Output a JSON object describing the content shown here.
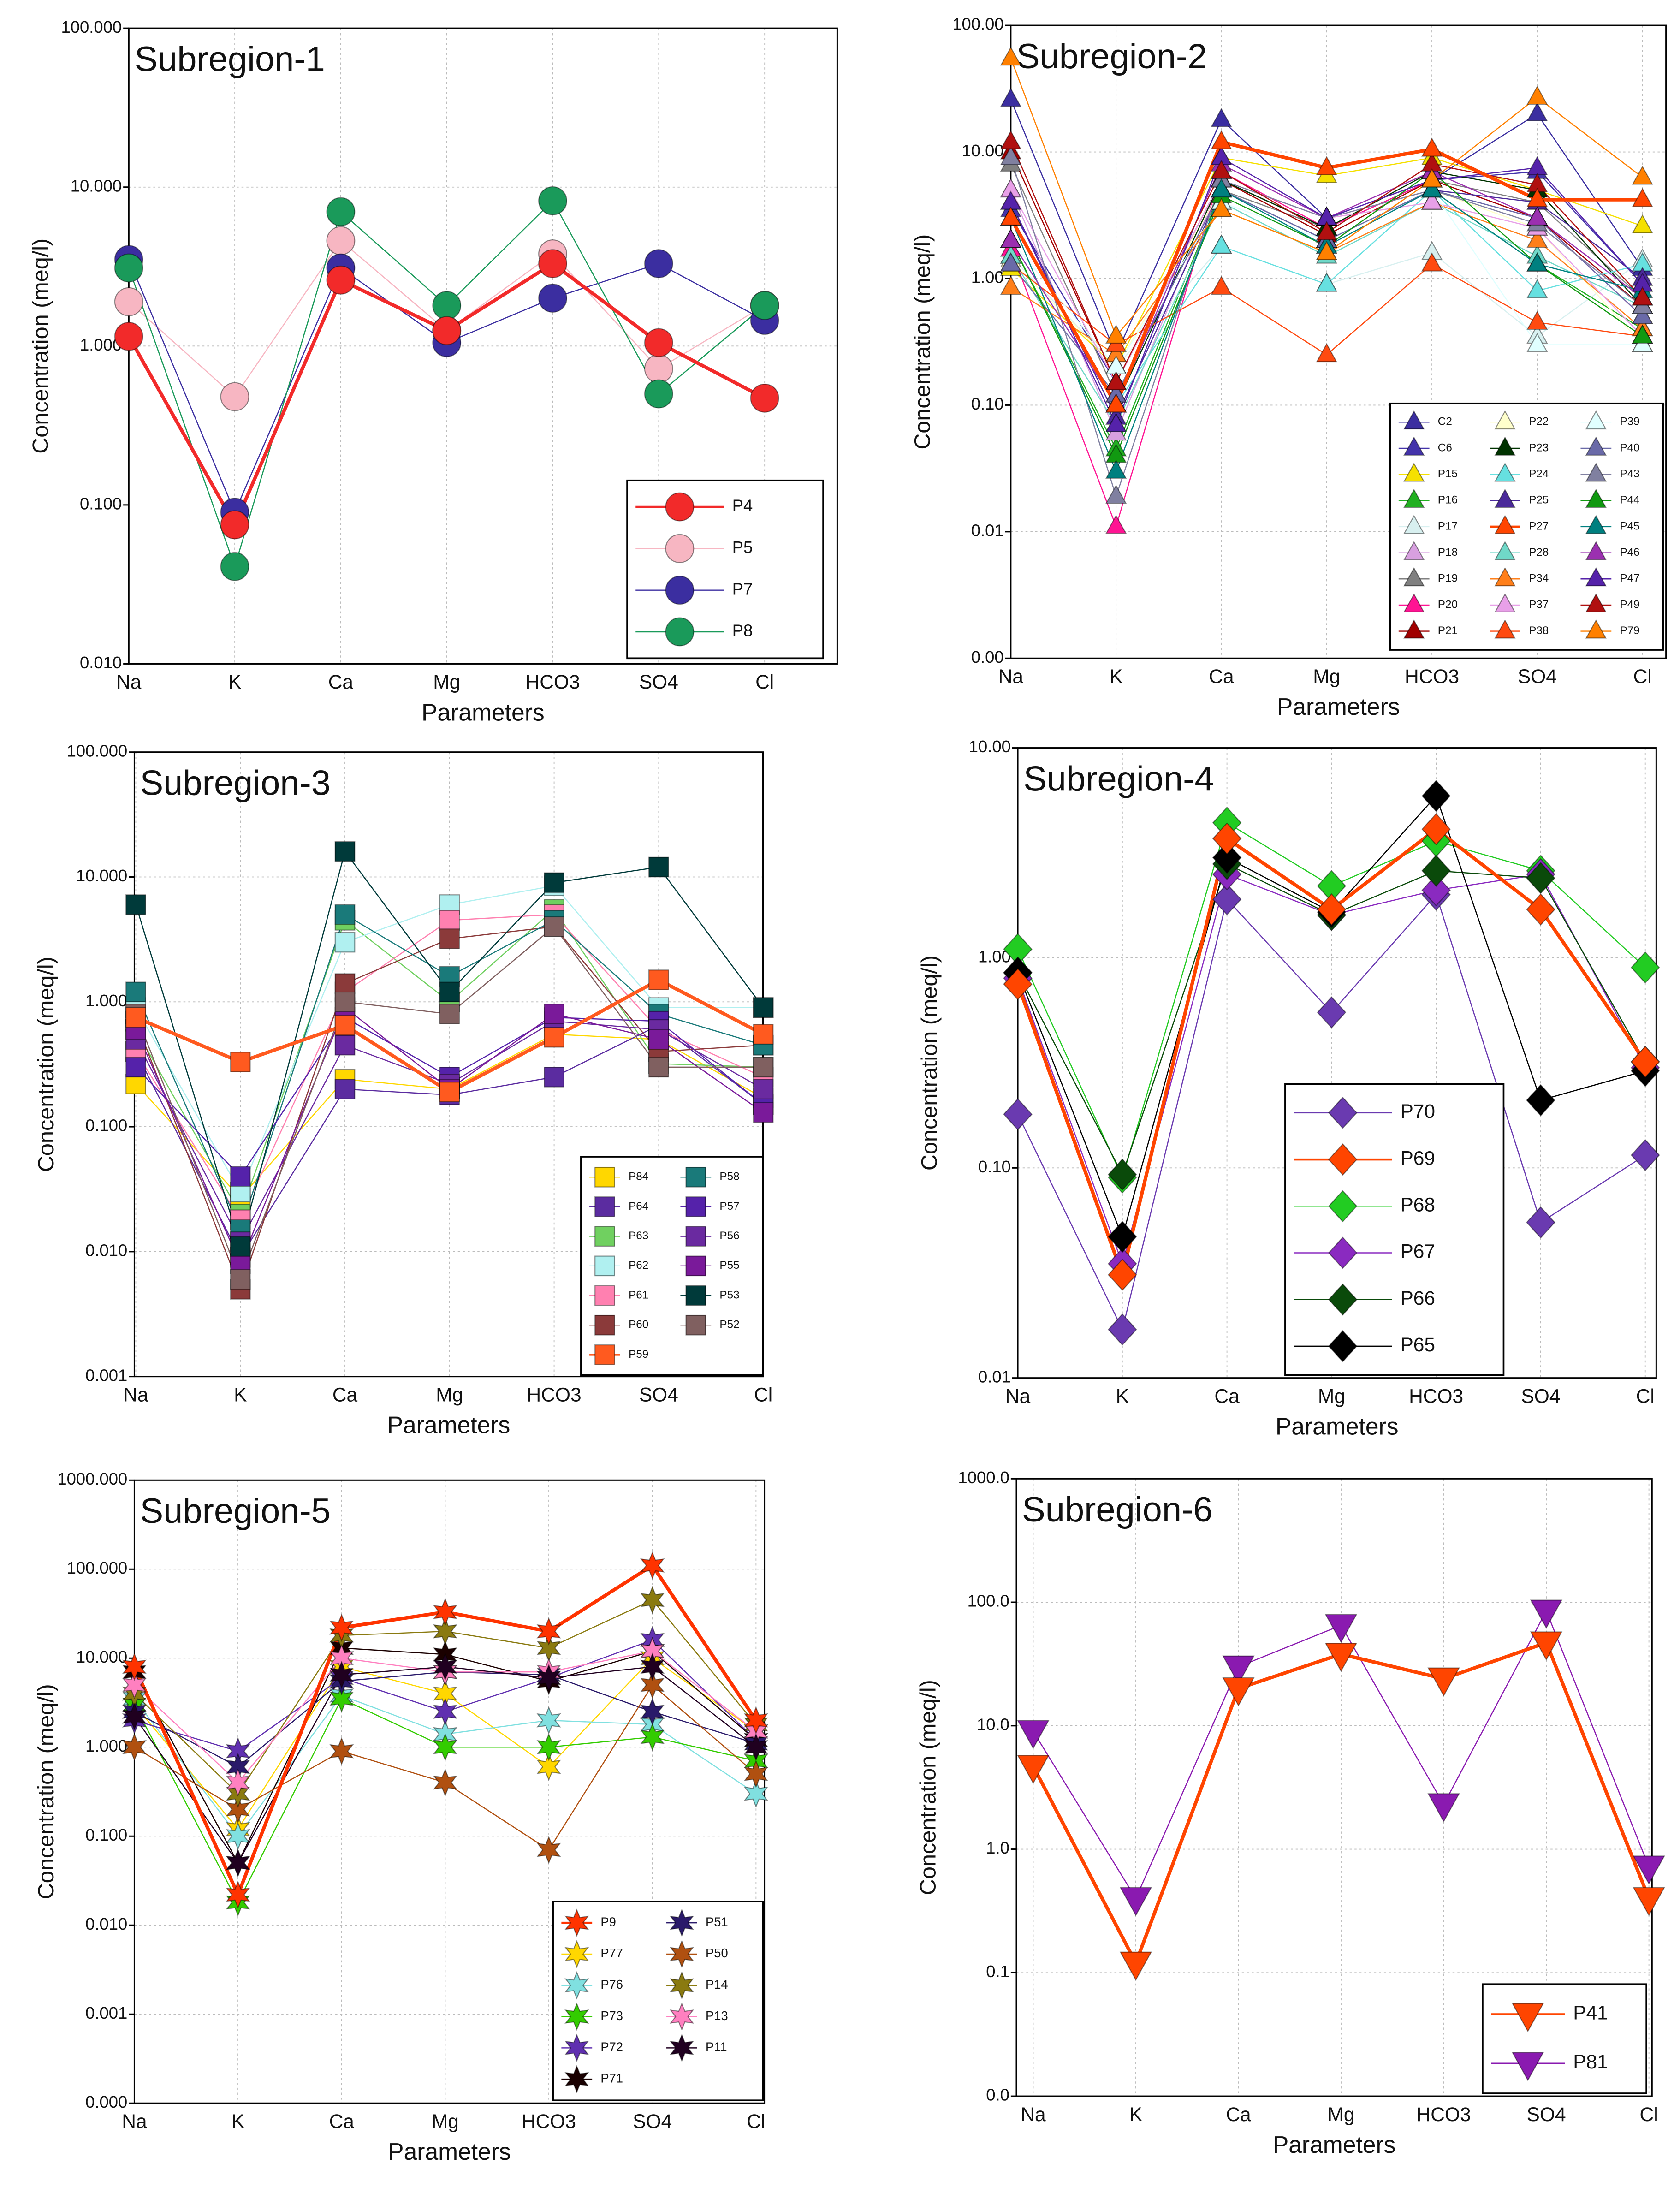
{
  "chart_data": [
    {
      "type": "line",
      "title": "Subregion-1",
      "xlabel": "Parameters",
      "ylabel": "Concentration (meq/l)",
      "yscale": "log",
      "grid": true,
      "legend": "lower right",
      "marker": "circle",
      "categories": [
        "Na",
        "K",
        "Ca",
        "Mg",
        "HCO3",
        "SO4",
        "Cl"
      ],
      "ylim": [
        0.01,
        100
      ],
      "yticks": [
        {
          "value": 100,
          "label": "100.000"
        },
        {
          "value": 10,
          "label": "10.000"
        },
        {
          "value": 1,
          "label": "1.000"
        },
        {
          "value": 0.1,
          "label": "0.100"
        },
        {
          "value": 0.01,
          "label": "0.010"
        }
      ],
      "series": [
        {
          "name": "P4",
          "color": "#f22a2a",
          "linewidth": 2.5,
          "values": [
            1.15,
            0.075,
            2.6,
            1.25,
            3.3,
            1.05,
            0.47
          ]
        },
        {
          "name": "P5",
          "color": "#f7b6c2",
          "values": [
            1.9,
            0.48,
            4.6,
            1.25,
            3.8,
            0.72,
            1.8
          ]
        },
        {
          "name": "P7",
          "color": "#3b2ea0",
          "values": [
            3.5,
            0.09,
            3.1,
            1.05,
            2.0,
            3.3,
            1.45
          ]
        },
        {
          "name": "P8",
          "color": "#1a9a5a",
          "values": [
            3.1,
            0.041,
            7.0,
            1.8,
            8.2,
            0.5,
            1.8
          ]
        }
      ]
    },
    {
      "type": "line",
      "title": "Subregion-2",
      "xlabel": "Parameters",
      "ylabel": "Concentration (meq/l)",
      "yscale": "log",
      "grid": true,
      "legend": "lower right",
      "marker": "triangle",
      "categories": [
        "Na",
        "K",
        "Ca",
        "Mg",
        "HCO3",
        "SO4",
        "Cl"
      ],
      "ylim": [
        0.001,
        100
      ],
      "yticks": [
        {
          "value": 100,
          "label": "100.00"
        },
        {
          "value": 10,
          "label": "10.00"
        },
        {
          "value": 1,
          "label": "1.00"
        },
        {
          "value": 0.1,
          "label": "0.10"
        },
        {
          "value": 0.01,
          "label": "0.01"
        },
        {
          "value": 0.001,
          "label": "0.00"
        }
      ],
      "series": [
        {
          "name": "C2",
          "color": "#3b2ea0",
          "values": [
            26,
            0.25,
            18,
            3,
            6,
            20,
            1.2
          ]
        },
        {
          "name": "C6",
          "color": "#4433aa",
          "values": [
            3.5,
            0.15,
            6,
            2.5,
            6,
            7,
            0.9
          ]
        },
        {
          "name": "P15",
          "color": "#f5e000",
          "values": [
            1.2,
            0.2,
            9,
            6.5,
            9,
            5,
            2.6
          ]
        },
        {
          "name": "P16",
          "color": "#22b022",
          "values": [
            2,
            0.045,
            5,
            2,
            5,
            1.3,
            0.4
          ]
        },
        {
          "name": "P17",
          "color": "#d8f0f0",
          "values": [
            1.5,
            0.2,
            1.8,
            0.9,
            1.6,
            0.35,
            1.4
          ]
        },
        {
          "name": "P18",
          "color": "#d8a0e0",
          "values": [
            5,
            0.06,
            6,
            3,
            5,
            3,
            0.6
          ]
        },
        {
          "name": "P19",
          "color": "#808080",
          "values": [
            8,
            0.12,
            5,
            2.5,
            6,
            4,
            0.7
          ]
        },
        {
          "name": "P20",
          "color": "#ff1493",
          "values": [
            1.7,
            0.011,
            7,
            2.5,
            6,
            3,
            0.5
          ]
        },
        {
          "name": "P21",
          "color": "#a00000",
          "values": [
            10,
            0.15,
            6,
            2.2,
            6,
            3,
            0.6
          ]
        },
        {
          "name": "P22",
          "color": "#ffffcc",
          "values": [
            1.4,
            0.2,
            5,
            2,
            5,
            2.5,
            0.3
          ]
        },
        {
          "name": "P23",
          "color": "#003300",
          "values": [
            3,
            0.1,
            6,
            2.5,
            7,
            5,
            0.6
          ]
        },
        {
          "name": "P24",
          "color": "#66e0e0",
          "values": [
            2,
            0.1,
            1.8,
            0.9,
            5,
            0.8,
            1.3
          ]
        },
        {
          "name": "P25",
          "color": "#4b2a9a",
          "values": [
            4,
            0.08,
            5,
            2,
            5,
            4,
            1.0
          ]
        },
        {
          "name": "P27",
          "color": "#ff4500",
          "linewidth": 2.5,
          "values": [
            3,
            0.1,
            12,
            7.5,
            10.5,
            4.2,
            4.2
          ]
        },
        {
          "name": "P28",
          "color": "#70d8c8",
          "values": [
            1.5,
            0.07,
            4,
            1.5,
            4,
            1.5,
            0.6
          ]
        },
        {
          "name": "P34",
          "color": "#ff7f1a",
          "values": [
            0.85,
            0.25,
            3.5,
            1.6,
            4,
            2,
            0.4
          ]
        },
        {
          "name": "P37",
          "color": "#e8a0e8",
          "values": [
            5,
            0.15,
            6,
            3,
            4,
            2.5,
            0.35
          ]
        },
        {
          "name": "P38",
          "color": "#ff4a10",
          "values": [
            1.3,
            0.3,
            0.85,
            0.25,
            1.3,
            0.45,
            0.35
          ]
        },
        {
          "name": "P39",
          "color": "#e0ffff",
          "values": [
            2,
            0.2,
            4,
            2,
            5,
            0.3,
            0.3
          ]
        },
        {
          "name": "P40",
          "color": "#6a6aa8",
          "values": [
            1.3,
            0.12,
            5,
            2,
            5,
            3,
            0.5
          ]
        },
        {
          "name": "P43",
          "color": "#8080a0",
          "values": [
            9,
            0.019,
            6,
            3,
            5,
            2.7,
            0.6
          ]
        },
        {
          "name": "P44",
          "color": "#119911",
          "values": [
            2,
            0.04,
            4.5,
            1.8,
            7,
            1.3,
            0.35
          ]
        },
        {
          "name": "P45",
          "color": "#008080",
          "values": [
            3,
            0.03,
            5,
            1.8,
            5,
            1.3,
            0.8
          ]
        },
        {
          "name": "P46",
          "color": "#9b30b0",
          "values": [
            2,
            0.1,
            8,
            3,
            7,
            3,
            0.7
          ]
        },
        {
          "name": "P47",
          "color": "#5522aa",
          "values": [
            4,
            0.07,
            9,
            3,
            6,
            7.5,
            0.9
          ]
        },
        {
          "name": "P49",
          "color": "#b01010",
          "values": [
            12,
            0.15,
            7,
            2.3,
            8,
            5.5,
            0.7
          ]
        },
        {
          "name": "P79",
          "color": "#ff8000",
          "values": [
            55,
            0.35,
            3.5,
            1.6,
            6,
            27,
            6.3
          ]
        }
      ]
    },
    {
      "type": "line",
      "title": "Subregion-3",
      "xlabel": "Parameters",
      "ylabel": "Concentration (meq/l)",
      "yscale": "log",
      "grid": true,
      "legend": "lower right",
      "marker": "square",
      "categories": [
        "Na",
        "K",
        "Ca",
        "Mg",
        "HCO3",
        "SO4",
        "Cl"
      ],
      "ylim": [
        0.001,
        100
      ],
      "yticks": [
        {
          "value": 100,
          "label": "100.000"
        },
        {
          "value": 10,
          "label": "10.000"
        },
        {
          "value": 1,
          "label": "1.000"
        },
        {
          "value": 0.1,
          "label": "0.100"
        },
        {
          "value": 0.01,
          "label": "0.010"
        },
        {
          "value": 0.001,
          "label": "0.001"
        }
      ],
      "series": [
        {
          "name": "P84",
          "color": "#ffd700",
          "values": [
            0.22,
            0.027,
            0.24,
            0.2,
            0.55,
            0.5,
            0.17
          ]
        },
        {
          "name": "P64",
          "color": "#5b2ca0",
          "values": [
            0.4,
            0.009,
            0.2,
            0.18,
            0.25,
            0.65,
            0.15
          ]
        },
        {
          "name": "P63",
          "color": "#70d060",
          "values": [
            0.6,
            0.02,
            4.5,
            1.0,
            5.5,
            0.32,
            0.3
          ]
        },
        {
          "name": "P62",
          "color": "#b0f0f0",
          "values": [
            0.9,
            0.03,
            3,
            6,
            8.5,
            0.9,
            0.9
          ]
        },
        {
          "name": "P61",
          "color": "#ff80b0",
          "values": [
            0.4,
            0.018,
            1.2,
            4.5,
            5,
            0.6,
            0.25
          ]
        },
        {
          "name": "P60",
          "color": "#8b3a3a",
          "values": [
            0.7,
            0.005,
            1.4,
            3.2,
            4,
            0.4,
            0.45
          ]
        },
        {
          "name": "P59",
          "color": "#ff5a1f",
          "linewidth": 2.5,
          "values": [
            0.75,
            0.33,
            0.65,
            0.19,
            0.52,
            1.5,
            0.55
          ]
        },
        {
          "name": "P58",
          "color": "#1a7a7a",
          "values": [
            1.2,
            0.015,
            5,
            1.6,
            4.5,
            0.8,
            0.45
          ]
        },
        {
          "name": "P57",
          "color": "#5522aa",
          "values": [
            0.3,
            0.04,
            0.75,
            0.25,
            0.75,
            0.7,
            0.15
          ]
        },
        {
          "name": "P56",
          "color": "#6a2aa0",
          "values": [
            0.5,
            0.012,
            0.45,
            0.22,
            0.7,
            0.6,
            0.2
          ]
        },
        {
          "name": "P55",
          "color": "#7a1a9a",
          "values": [
            0.6,
            0.008,
            0.9,
            0.2,
            0.8,
            0.5,
            0.13
          ]
        },
        {
          "name": "P53",
          "color": "#003a3a",
          "values": [
            6,
            0.011,
            16,
            1.2,
            9,
            12,
            0.9
          ]
        },
        {
          "name": "P52",
          "color": "#806060",
          "values": [
            0.8,
            0.006,
            1.0,
            0.8,
            4,
            0.3,
            0.3
          ]
        }
      ]
    },
    {
      "type": "line",
      "title": "Subregion-4",
      "xlabel": "Parameters",
      "ylabel": "Concentration (meq/l)",
      "yscale": "log",
      "grid": true,
      "legend": "lower right",
      "marker": "diamond",
      "categories": [
        "Na",
        "K",
        "Ca",
        "Mg",
        "HCO3",
        "SO4",
        "Cl"
      ],
      "ylim": [
        0.01,
        10
      ],
      "yticks": [
        {
          "value": 10,
          "label": "10.00"
        },
        {
          "value": 1,
          "label": "1.00"
        },
        {
          "value": 0.1,
          "label": "0.10"
        },
        {
          "value": 0.01,
          "label": "0.01"
        }
      ],
      "series": [
        {
          "name": "P70",
          "color": "#6a3ab0",
          "values": [
            0.18,
            0.017,
            1.9,
            0.55,
            2.0,
            0.055,
            0.115
          ]
        },
        {
          "name": "P69",
          "color": "#ff4500",
          "linewidth": 2.5,
          "values": [
            0.75,
            0.031,
            3.7,
            1.7,
            4.1,
            1.7,
            0.32
          ]
        },
        {
          "name": "P68",
          "color": "#22cc22",
          "values": [
            1.1,
            0.09,
            4.4,
            2.2,
            3.6,
            2.6,
            0.9
          ]
        },
        {
          "name": "P67",
          "color": "#8a2ac0",
          "values": [
            0.8,
            0.035,
            2.5,
            1.6,
            2.1,
            2.5,
            0.3
          ]
        },
        {
          "name": "P66",
          "color": "#0a4a0a",
          "values": [
            0.85,
            0.093,
            2.8,
            1.6,
            2.6,
            2.4,
            0.32
          ]
        },
        {
          "name": "P65",
          "color": "#000000",
          "values": [
            0.85,
            0.047,
            3.0,
            1.65,
            5.9,
            0.21,
            0.29
          ]
        }
      ]
    },
    {
      "type": "line",
      "title": "Subregion-5",
      "xlabel": "Parameters",
      "ylabel": "Concentration (meq/l)",
      "yscale": "log",
      "grid": true,
      "legend": "lower right",
      "marker": "star",
      "categories": [
        "Na",
        "K",
        "Ca",
        "Mg",
        "HCO3",
        "SO4",
        "Cl"
      ],
      "ylim": [
        0.0001,
        1000
      ],
      "yticks": [
        {
          "value": 1000,
          "label": "1000.000"
        },
        {
          "value": 100,
          "label": "100.000"
        },
        {
          "value": 10,
          "label": "10.000"
        },
        {
          "value": 1,
          "label": "1.000"
        },
        {
          "value": 0.1,
          "label": "0.100"
        },
        {
          "value": 0.01,
          "label": "0.010"
        },
        {
          "value": 0.001,
          "label": "0.001"
        },
        {
          "value": 0.0001,
          "label": "0.000"
        }
      ],
      "series": [
        {
          "name": "P9",
          "color": "#ff3300",
          "linewidth": 2.5,
          "values": [
            8,
            0.022,
            22,
            33,
            20,
            110,
            2.0
          ]
        },
        {
          "name": "P77",
          "color": "#ffd700",
          "values": [
            3,
            0.12,
            8,
            4,
            0.6,
            10,
            1.5
          ]
        },
        {
          "name": "P76",
          "color": "#80e0e0",
          "values": [
            3.5,
            0.1,
            3.8,
            1.4,
            2.0,
            1.8,
            0.3
          ]
        },
        {
          "name": "P73",
          "color": "#33cc00",
          "values": [
            3,
            0.018,
            3.5,
            1.0,
            1.0,
            1.3,
            0.7
          ]
        },
        {
          "name": "P72",
          "color": "#6030b0",
          "values": [
            2.0,
            0.9,
            6,
            2.5,
            6,
            16,
            1.2
          ]
        },
        {
          "name": "P71",
          "color": "#1a0000",
          "values": [
            7,
            0.05,
            13,
            11,
            5.5,
            12,
            1.2
          ]
        },
        {
          "name": "P51",
          "color": "#2a1a6a",
          "values": [
            2.5,
            0.6,
            5.5,
            7,
            6.5,
            2.5,
            1.1
          ]
        },
        {
          "name": "P50",
          "color": "#b05010",
          "values": [
            1.0,
            0.2,
            0.9,
            0.4,
            0.07,
            5,
            0.5
          ]
        },
        {
          "name": "P14",
          "color": "#8a7a10",
          "values": [
            4,
            0.3,
            18,
            20,
            13,
            45,
            1.8
          ]
        },
        {
          "name": "P13",
          "color": "#ff80c0",
          "values": [
            5,
            0.4,
            10,
            7,
            7,
            12,
            1.5
          ]
        },
        {
          "name": "P11",
          "color": "#200020",
          "values": [
            2.2,
            0.05,
            6.5,
            8,
            6,
            8,
            1.0
          ]
        }
      ]
    },
    {
      "type": "line",
      "title": "Subregion-6",
      "xlabel": "Parameters",
      "ylabel": "Concentration (meq/l)",
      "yscale": "log",
      "grid": true,
      "legend": "lower right",
      "marker": "triangle-down",
      "categories": [
        "Na",
        "K",
        "Ca",
        "Mg",
        "HCO3",
        "SO4",
        "Cl"
      ],
      "ylim": [
        0.01,
        1000
      ],
      "yticks": [
        {
          "value": 1000,
          "label": "1000.0"
        },
        {
          "value": 100,
          "label": "100.0"
        },
        {
          "value": 10,
          "label": "10.0"
        },
        {
          "value": 1,
          "label": "1.0"
        },
        {
          "value": 0.1,
          "label": "0.1"
        },
        {
          "value": 0.01,
          "label": "0.0"
        }
      ],
      "series": [
        {
          "name": "P41",
          "color": "#ff4500",
          "linewidth": 2.5,
          "values": [
            4.7,
            0.12,
            20,
            38,
            24,
            47,
            0.4
          ]
        },
        {
          "name": "P81",
          "color": "#8a1ab0",
          "values": [
            9,
            0.4,
            30,
            65,
            2.3,
            85,
            0.72
          ]
        }
      ]
    }
  ]
}
